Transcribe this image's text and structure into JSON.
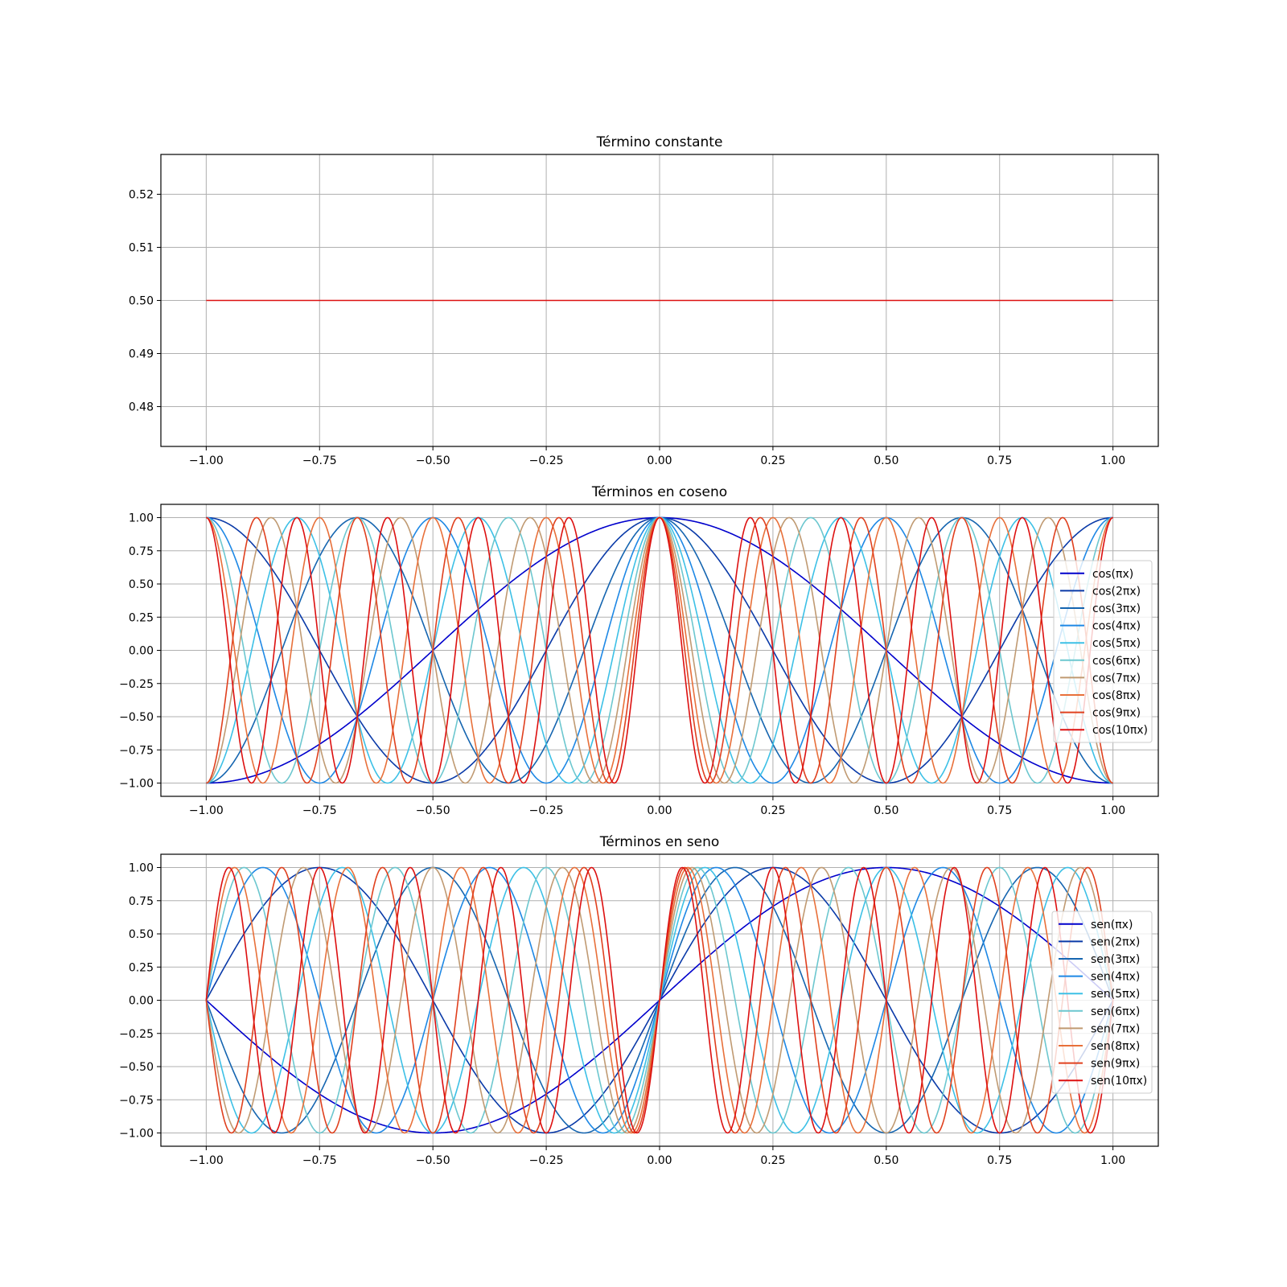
{
  "colors": [
    "#0000cc",
    "#0a3aa8",
    "#1565b0",
    "#1e88e5",
    "#3cc0e6",
    "#6cc7cf",
    "#c09a72",
    "#e8703a",
    "#e0401e",
    "#dd1010"
  ],
  "chart_data": [
    {
      "type": "line",
      "title": "Término constante",
      "xlim": [
        -1.1,
        1.1
      ],
      "ylim": [
        0.4725,
        0.5275
      ],
      "xticks": [
        -1.0,
        -0.75,
        -0.5,
        -0.25,
        0.0,
        0.25,
        0.5,
        0.75,
        1.0
      ],
      "xtick_labels": [
        "−1.00",
        "−0.75",
        "−0.50",
        "−0.25",
        "0.00",
        "0.25",
        "0.50",
        "0.75",
        "1.00"
      ],
      "yticks": [
        0.48,
        0.49,
        0.5,
        0.51,
        0.52
      ],
      "ytick_labels": [
        "0.48",
        "0.49",
        "0.50",
        "0.51",
        "0.52"
      ],
      "grid": true,
      "legend": null,
      "series": [
        {
          "kind": "constant",
          "value": 0.5,
          "x_range": [
            -1,
            1
          ],
          "color": "#dd1010"
        }
      ]
    },
    {
      "type": "line",
      "title": "Términos en coseno",
      "xlim": [
        -1.1,
        1.1
      ],
      "ylim": [
        -1.1,
        1.1
      ],
      "xticks": [
        -1.0,
        -0.75,
        -0.5,
        -0.25,
        0.0,
        0.25,
        0.5,
        0.75,
        1.0
      ],
      "xtick_labels": [
        "−1.00",
        "−0.75",
        "−0.50",
        "−0.25",
        "0.00",
        "0.25",
        "0.50",
        "0.75",
        "1.00"
      ],
      "yticks": [
        -1.0,
        -0.75,
        -0.5,
        -0.25,
        0.0,
        0.25,
        0.5,
        0.75,
        1.0
      ],
      "ytick_labels": [
        "−1.00",
        "−0.75",
        "−0.50",
        "−0.25",
        "0.00",
        "0.25",
        "0.50",
        "0.75",
        "1.00"
      ],
      "grid": true,
      "legend": "center-right",
      "function": "cos",
      "x_range": [
        -1,
        1
      ],
      "series": [
        {
          "name": "cos(πx)",
          "n": 1
        },
        {
          "name": "cos(2πx)",
          "n": 2
        },
        {
          "name": "cos(3πx)",
          "n": 3
        },
        {
          "name": "cos(4πx)",
          "n": 4
        },
        {
          "name": "cos(5πx)",
          "n": 5
        },
        {
          "name": "cos(6πx)",
          "n": 6
        },
        {
          "name": "cos(7πx)",
          "n": 7
        },
        {
          "name": "cos(8πx)",
          "n": 8
        },
        {
          "name": "cos(9πx)",
          "n": 9
        },
        {
          "name": "cos(10πx)",
          "n": 10
        }
      ]
    },
    {
      "type": "line",
      "title": "Términos en seno",
      "xlim": [
        -1.1,
        1.1
      ],
      "ylim": [
        -1.1,
        1.1
      ],
      "xticks": [
        -1.0,
        -0.75,
        -0.5,
        -0.25,
        0.0,
        0.25,
        0.5,
        0.75,
        1.0
      ],
      "xtick_labels": [
        "−1.00",
        "−0.75",
        "−0.50",
        "−0.25",
        "0.00",
        "0.25",
        "0.50",
        "0.75",
        "1.00"
      ],
      "yticks": [
        -1.0,
        -0.75,
        -0.5,
        -0.25,
        0.0,
        0.25,
        0.5,
        0.75,
        1.0
      ],
      "ytick_labels": [
        "−1.00",
        "−0.75",
        "−0.50",
        "−0.25",
        "0.00",
        "0.25",
        "0.50",
        "0.75",
        "1.00"
      ],
      "grid": true,
      "legend": "center-right",
      "function": "sin",
      "x_range": [
        -1,
        1
      ],
      "series": [
        {
          "name": "sen(πx)",
          "n": 1
        },
        {
          "name": "sen(2πx)",
          "n": 2
        },
        {
          "name": "sen(3πx)",
          "n": 3
        },
        {
          "name": "sen(4πx)",
          "n": 4
        },
        {
          "name": "sen(5πx)",
          "n": 5
        },
        {
          "name": "sen(6πx)",
          "n": 6
        },
        {
          "name": "sen(7πx)",
          "n": 7
        },
        {
          "name": "sen(8πx)",
          "n": 8
        },
        {
          "name": "sen(9πx)",
          "n": 9
        },
        {
          "name": "sen(10πx)",
          "n": 10
        }
      ]
    }
  ]
}
